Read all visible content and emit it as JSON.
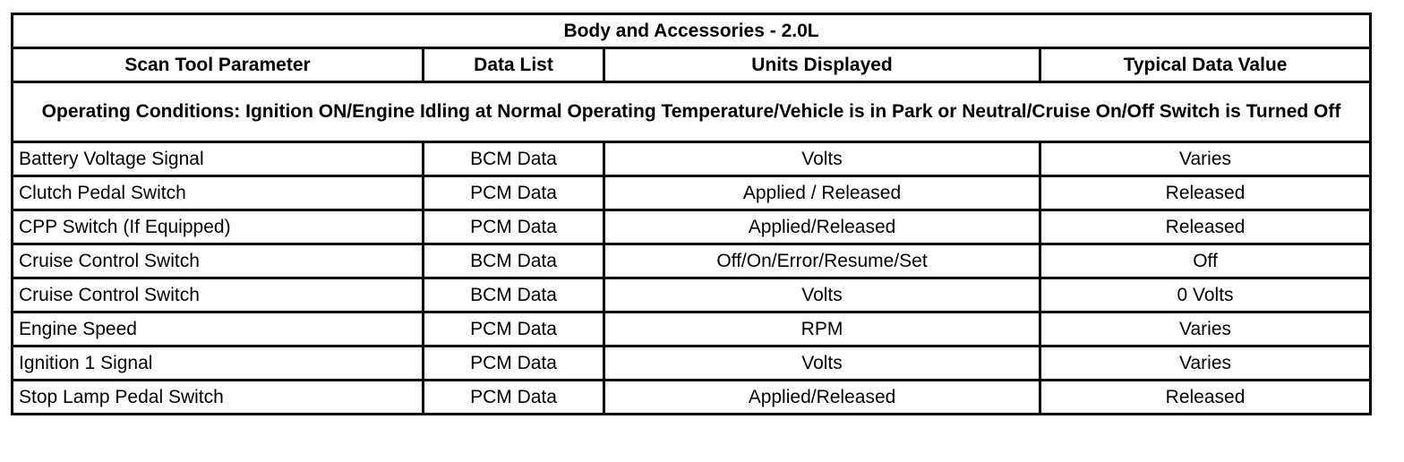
{
  "table": {
    "title": "Body and Accessories - 2.0L",
    "headers": [
      "Scan Tool Parameter",
      "Data List",
      "Units Displayed",
      "Typical Data Value"
    ],
    "operating_conditions": "Operating Conditions: Ignition ON/Engine Idling at Normal Operating Temperature/Vehicle is in Park or Neutral/Cruise On/Off Switch is Turned Off",
    "rows": [
      [
        "Battery Voltage Signal",
        "BCM Data",
        "Volts",
        "Varies"
      ],
      [
        "Clutch Pedal Switch",
        "PCM Data",
        "Applied / Released",
        "Released"
      ],
      [
        "CPP Switch (If Equipped)",
        "PCM Data",
        "Applied/Released",
        "Released"
      ],
      [
        "Cruise Control Switch",
        "BCM Data",
        "Off/On/Error/Resume/Set",
        "Off"
      ],
      [
        "Cruise Control Switch",
        "BCM Data",
        "Volts",
        "0 Volts"
      ],
      [
        "Engine Speed",
        "PCM Data",
        "RPM",
        "Varies"
      ],
      [
        "Ignition 1 Signal",
        "PCM Data",
        "Volts",
        "Varies"
      ],
      [
        "Stop Lamp Pedal Switch",
        "PCM Data",
        "Applied/Released",
        "Released"
      ]
    ]
  }
}
